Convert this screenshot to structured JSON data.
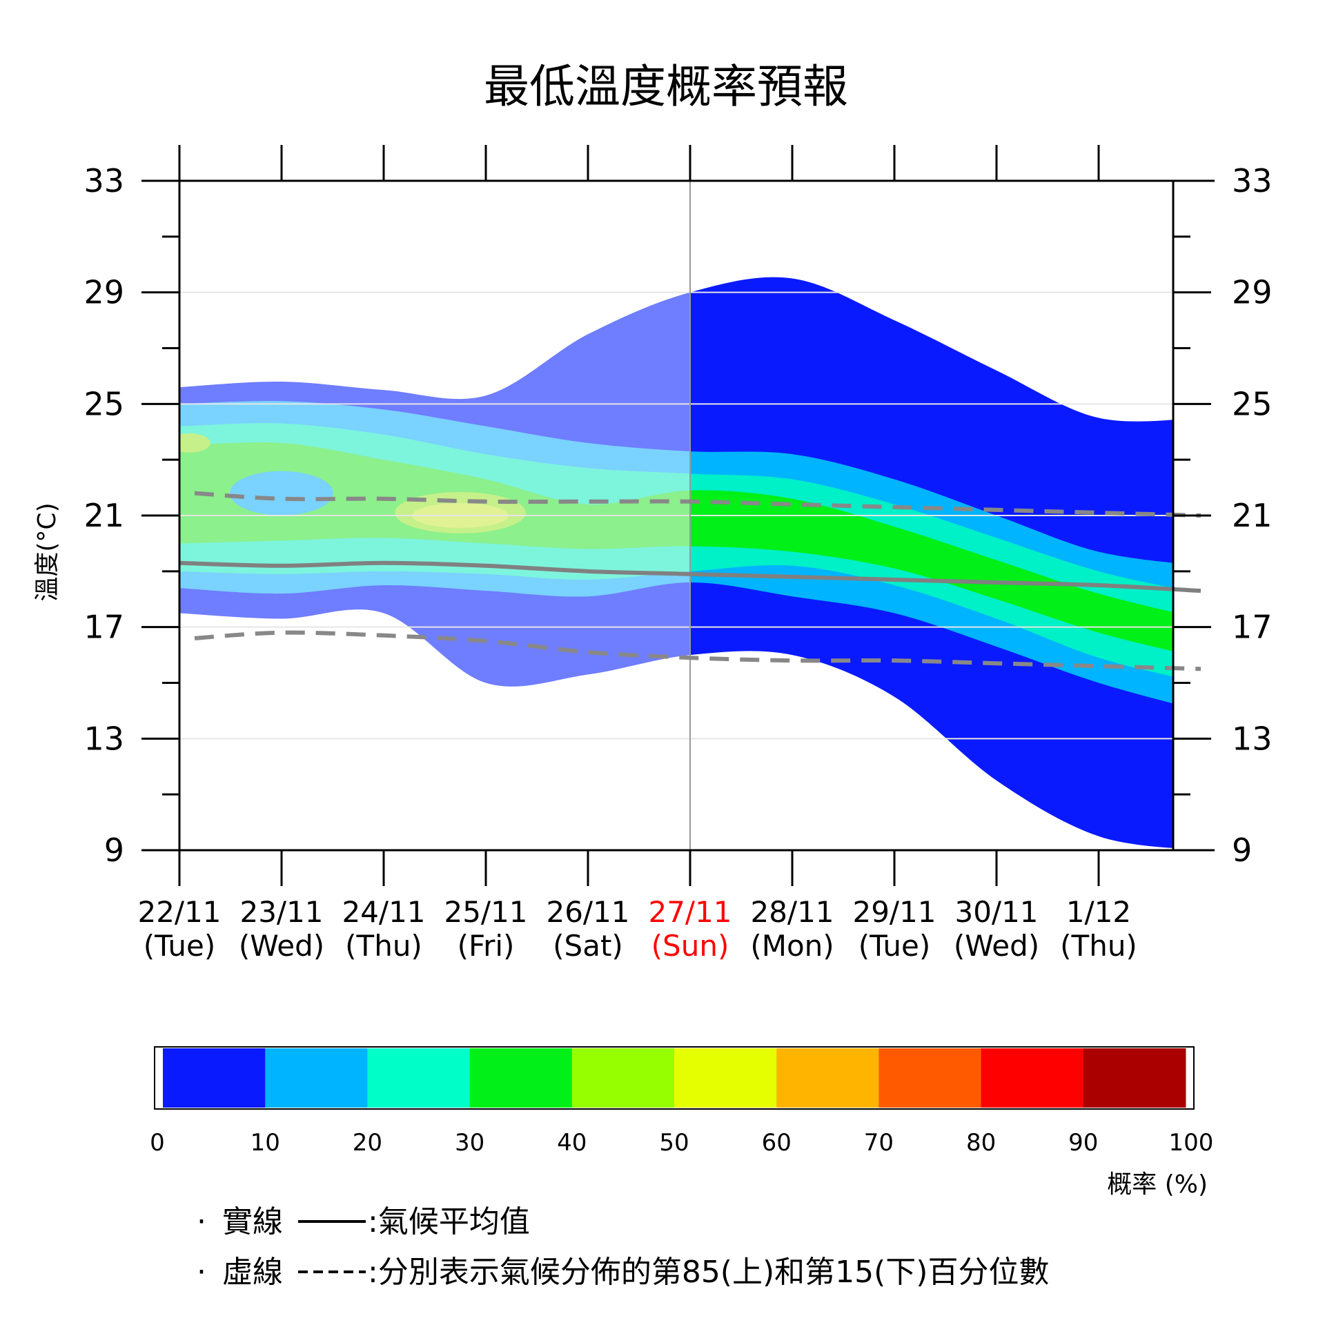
{
  "chart_data": {
    "type": "area",
    "title": "最低溫度概率預報",
    "ylabel": "溫度(°C)",
    "ylim": [
      9,
      33
    ],
    "yticks": [
      "9",
      "13",
      "17",
      "21",
      "25",
      "29",
      "33"
    ],
    "grid": "horizontal",
    "dates": [
      {
        "date": "22/11",
        "day": "(Tue)"
      },
      {
        "date": "23/11",
        "day": "(Wed)"
      },
      {
        "date": "24/11",
        "day": "(Thu)"
      },
      {
        "date": "25/11",
        "day": "(Fri)"
      },
      {
        "date": "26/11",
        "day": "(Sat)"
      },
      {
        "date": "27/11",
        "day": "(Sun)",
        "highlight": true
      },
      {
        "date": "28/11",
        "day": "(Mon)"
      },
      {
        "date": "29/11",
        "day": "(Tue)"
      },
      {
        "date": "30/11",
        "day": "(Wed)"
      },
      {
        "date": "1/12",
        "day": "(Thu)"
      }
    ],
    "forecast_start": "27/11",
    "probability_bands": [
      {
        "name": "0-10%",
        "color": "#0a1aff",
        "past_color": "#6f7dff",
        "upper": [
          25.6,
          25.8,
          25.5,
          25.3,
          27.5,
          29.0,
          29.5,
          28.0,
          26.2,
          24.5,
          24.5
        ],
        "lower": [
          17.5,
          17.3,
          17.5,
          15.0,
          15.3,
          16.0,
          16.0,
          14.5,
          11.5,
          9.5,
          9.0
        ]
      },
      {
        "name": "10-20%",
        "color": "#00b4ff",
        "past_color": "#7ad2ff",
        "upper": [
          25.0,
          25.1,
          24.8,
          24.2,
          23.6,
          23.3,
          23.2,
          22.3,
          21.0,
          19.7,
          19.2
        ],
        "lower": [
          18.4,
          18.2,
          18.5,
          18.3,
          18.1,
          18.6,
          18.1,
          17.5,
          16.3,
          15.0,
          14.0
        ]
      },
      {
        "name": "20-30%",
        "color": "#00f0c8",
        "past_color": "#7df4dc",
        "upper": [
          24.2,
          24.3,
          23.9,
          23.2,
          22.7,
          22.5,
          22.3,
          21.4,
          20.2,
          19.0,
          18.2
        ],
        "lower": [
          19.0,
          18.9,
          19.0,
          18.9,
          18.7,
          19.0,
          19.2,
          18.5,
          17.3,
          15.9,
          15.0
        ]
      },
      {
        "name": "30-40%",
        "color": "#00f018",
        "past_color": "#8cf08c",
        "upper": [
          23.5,
          23.6,
          23.0,
          22.3,
          21.4,
          21.9,
          21.6,
          20.6,
          19.4,
          18.2,
          17.3
        ],
        "lower": [
          20.0,
          20.1,
          20.2,
          20.0,
          19.8,
          19.9,
          19.7,
          19.1,
          18.0,
          16.8,
          15.9
        ]
      },
      {
        "name": "40-50%",
        "color": "#96f000",
        "past_color": "#c6f08a",
        "upper": [],
        "lower": []
      },
      {
        "name": "50-60%",
        "color": "#e6f000",
        "past_color": "#e8f29a",
        "upper": [],
        "lower": []
      }
    ],
    "climate_mean": [
      19.3,
      19.2,
      19.3,
      19.2,
      19.0,
      18.9,
      18.8,
      18.7,
      18.6,
      18.5,
      18.3
    ],
    "climate_p85": [
      21.8,
      21.6,
      21.6,
      21.5,
      21.5,
      21.5,
      21.4,
      21.3,
      21.2,
      21.1,
      21.0
    ],
    "climate_p15": [
      16.6,
      16.8,
      16.7,
      16.5,
      16.1,
      15.9,
      15.8,
      15.8,
      15.7,
      15.6,
      15.5
    ],
    "colorbar": {
      "ticks": [
        "0",
        "10",
        "20",
        "30",
        "40",
        "50",
        "60",
        "70",
        "80",
        "90",
        "100"
      ],
      "colors": [
        "#0a1aff",
        "#00b4ff",
        "#00ffc8",
        "#00f018",
        "#96ff00",
        "#e6ff00",
        "#ffb400",
        "#ff5a00",
        "#ff0000",
        "#aa0000"
      ],
      "unit": "概率 (%)"
    }
  },
  "legend": {
    "solid_bullet": "·",
    "solid_name": "實線",
    "solid_desc": ":氣候平均值",
    "dashed_bullet": "·",
    "dashed_name": "虛線",
    "dashed_desc": ":分別表示氣候分佈的第85(上)和第15(下)百分位數"
  }
}
